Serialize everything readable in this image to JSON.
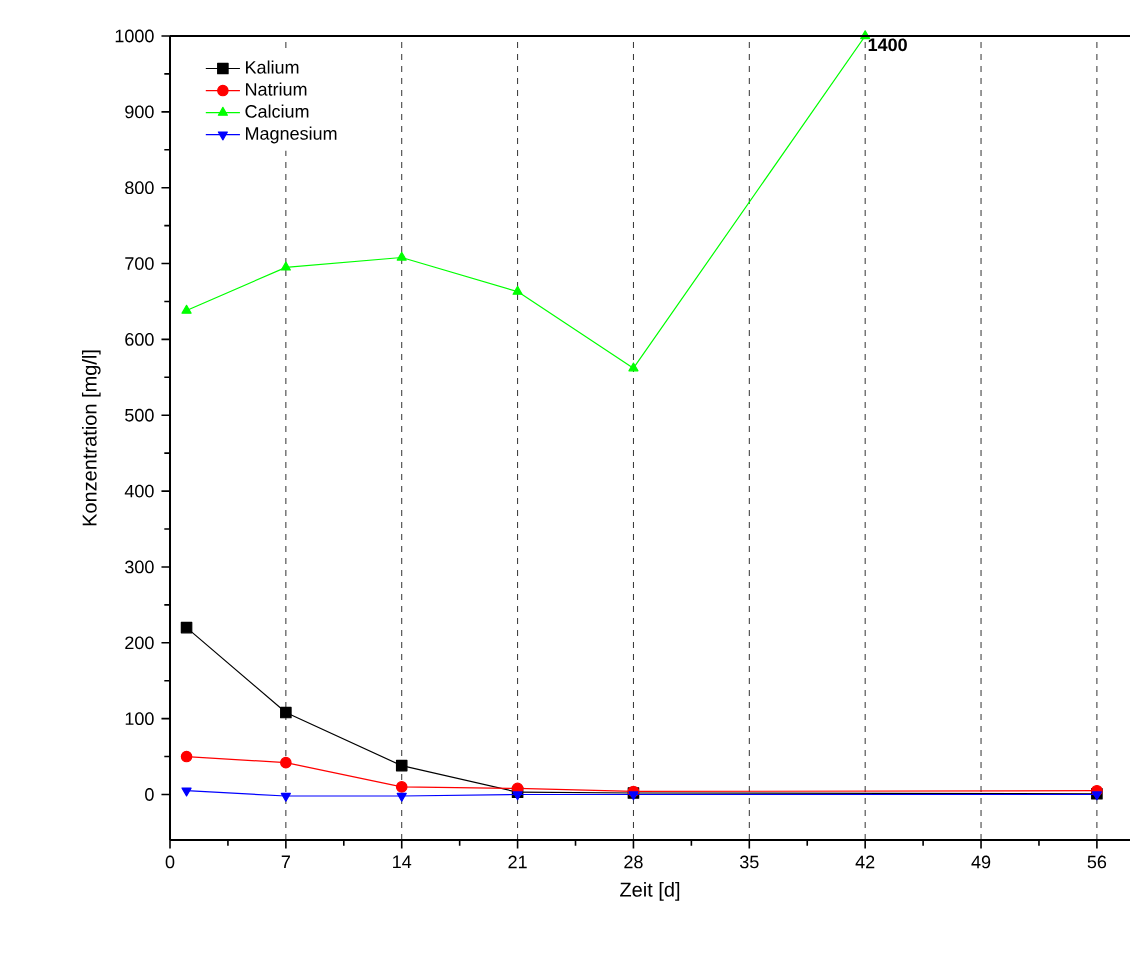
{
  "chart_data": {
    "type": "line",
    "xlabel": "Zeit [d]",
    "ylabel": "Konzentration [mg/l]",
    "xlim": [
      0,
      58
    ],
    "ylim": [
      -60,
      1000
    ],
    "xticks": [
      0,
      7,
      14,
      21,
      28,
      35,
      42,
      49,
      56
    ],
    "yticks": [
      0,
      100,
      200,
      300,
      400,
      500,
      600,
      700,
      800,
      900,
      1000
    ],
    "grid": "x",
    "legend": "top left",
    "series": [
      {
        "name": "Kalium",
        "color": "#000000",
        "marker": "square",
        "x": [
          1,
          7,
          14,
          21,
          28,
          56
        ],
        "values": [
          220,
          108,
          38,
          3,
          2,
          1
        ]
      },
      {
        "name": "Natrium",
        "color": "#ff0000",
        "marker": "circle",
        "x": [
          1,
          7,
          14,
          21,
          28,
          56
        ],
        "values": [
          50,
          42,
          10,
          8,
          4,
          5
        ]
      },
      {
        "name": "Calcium",
        "color": "#00ff00",
        "marker": "triangle",
        "x": [
          1,
          7,
          14,
          21,
          28,
          42
        ],
        "values": [
          638,
          695,
          708,
          663,
          562,
          1000
        ]
      },
      {
        "name": "Magnesium",
        "color": "#0000ff",
        "marker": "triangle down",
        "x": [
          1,
          7,
          14,
          21,
          28,
          56
        ],
        "values": [
          5,
          -2,
          -2,
          0,
          0,
          0
        ]
      }
    ],
    "annotations": [
      {
        "text": "1400",
        "x": 42,
        "y": 1000
      }
    ]
  }
}
